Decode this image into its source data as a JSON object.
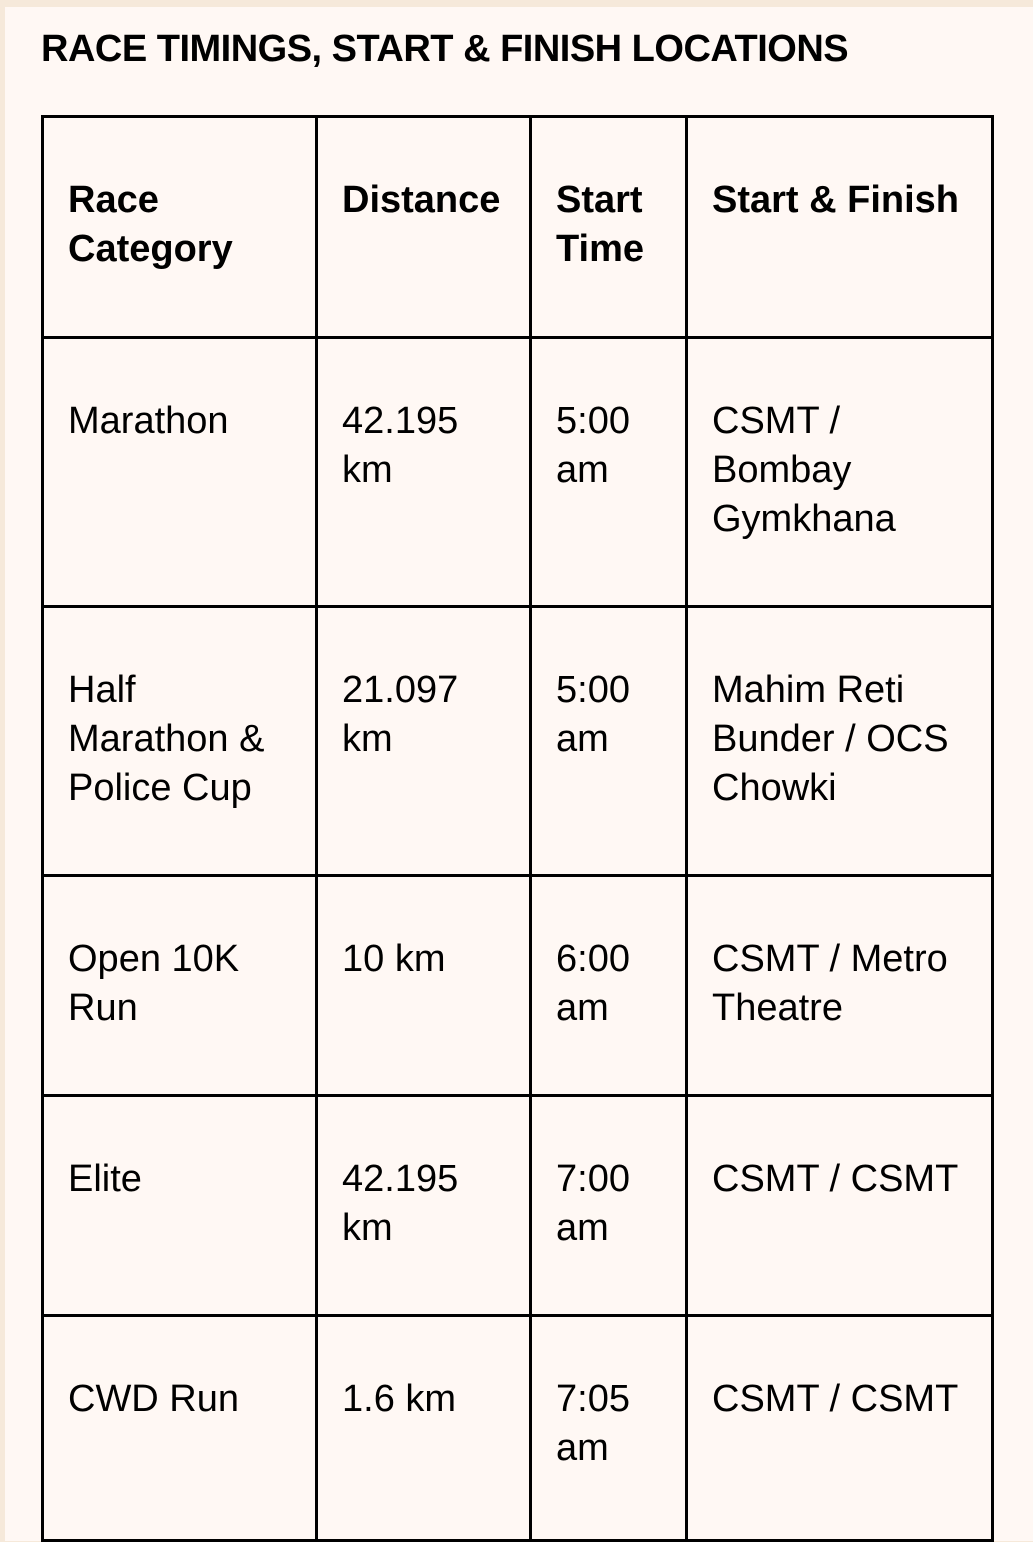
{
  "title": "RACE TIMINGS, START & FINISH LOCATIONS",
  "table": {
    "headers": [
      "Race Category",
      "Distance",
      "Start Time",
      "Start & Finish"
    ],
    "rows": [
      [
        "Marathon",
        "42.195 km",
        "5:00 am",
        "CSMT / Bombay Gymkhana"
      ],
      [
        "Half Marathon & Police Cup",
        "21.097 km",
        "5:00 am",
        "Mahim Reti Bunder / OCS Chowki"
      ],
      [
        "Open 10K Run",
        "10 km",
        "6:00 am",
        "CSMT / Metro Theatre"
      ],
      [
        "Elite",
        "42.195 km",
        "7:00 am",
        "CSMT / CSMT"
      ],
      [
        "CWD Run",
        "1.6 km",
        "7:05 am",
        "CSMT / CSMT"
      ]
    ]
  },
  "colors": {
    "page_bg": "#f6e9da",
    "panel_bg": "#fff8f4",
    "border": "#000000"
  }
}
